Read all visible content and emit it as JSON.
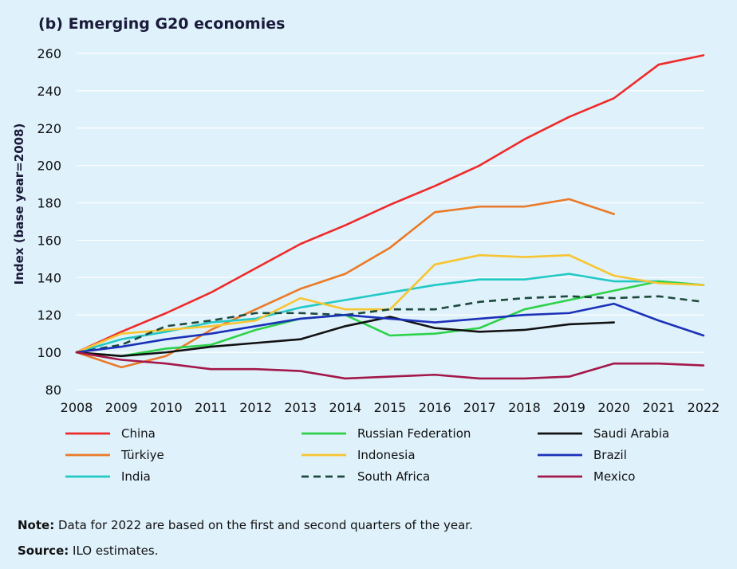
{
  "chart_data": {
    "type": "line",
    "title": "(b) Emerging G20 economies",
    "ylabel": "Index (base year=2008)",
    "xlabel": "",
    "x": [
      2008,
      2009,
      2010,
      2011,
      2012,
      2013,
      2014,
      2015,
      2016,
      2017,
      2018,
      2019,
      2020,
      2021,
      2022
    ],
    "ylim": [
      80,
      260
    ],
    "yticks": [
      80,
      100,
      120,
      140,
      160,
      180,
      200,
      220,
      240,
      260
    ],
    "grid": "horizontal",
    "legend_position": "bottom",
    "series": [
      {
        "name": "China",
        "color": "#ee2a2a",
        "dash": false,
        "values": [
          100,
          111,
          121,
          132,
          145,
          158,
          168,
          179,
          189,
          200,
          214,
          226,
          236,
          254,
          259
        ]
      },
      {
        "name": "Türkiye",
        "color": "#ea7a28",
        "dash": false,
        "values": [
          100,
          92,
          98,
          112,
          123,
          134,
          142,
          156,
          175,
          178,
          178,
          182,
          174,
          null,
          null
        ]
      },
      {
        "name": "India",
        "color": "#22c9c4",
        "dash": false,
        "values": [
          100,
          107,
          111,
          116,
          118,
          124,
          128,
          132,
          136,
          139,
          139,
          142,
          138,
          138,
          136
        ]
      },
      {
        "name": "Russian Federation",
        "color": "#2ed24a",
        "dash": false,
        "values": [
          100,
          98,
          102,
          104,
          112,
          118,
          120,
          109,
          110,
          113,
          123,
          128,
          133,
          138,
          136
        ]
      },
      {
        "name": "Indonesia",
        "color": "#f7c531",
        "dash": false,
        "values": [
          100,
          110,
          112,
          114,
          117,
          129,
          123,
          123,
          147,
          152,
          151,
          152,
          141,
          137,
          136
        ]
      },
      {
        "name": "South Africa",
        "color": "#1c4a3c",
        "dash": true,
        "values": [
          100,
          104,
          114,
          117,
          121,
          121,
          120,
          123,
          123,
          127,
          129,
          130,
          129,
          130,
          127
        ]
      },
      {
        "name": "Saudi Arabia",
        "color": "#111111",
        "dash": false,
        "values": [
          100,
          98,
          100,
          103,
          105,
          107,
          114,
          119,
          113,
          111,
          112,
          115,
          116,
          null,
          null
        ]
      },
      {
        "name": "Brazil",
        "color": "#1b31b8",
        "dash": false,
        "values": [
          100,
          103,
          107,
          110,
          114,
          118,
          120,
          118,
          116,
          118,
          120,
          121,
          126,
          117,
          109
        ]
      },
      {
        "name": "Mexico",
        "color": "#a3174a",
        "dash": false,
        "values": [
          100,
          96,
          94,
          91,
          91,
          90,
          86,
          87,
          88,
          86,
          86,
          87,
          94,
          94,
          93
        ]
      }
    ]
  },
  "note": {
    "label": "Note:",
    "text": " Data for 2022 are based on the first and second quarters of the year."
  },
  "source": {
    "label": "Source:",
    "text": " ILO estimates."
  }
}
